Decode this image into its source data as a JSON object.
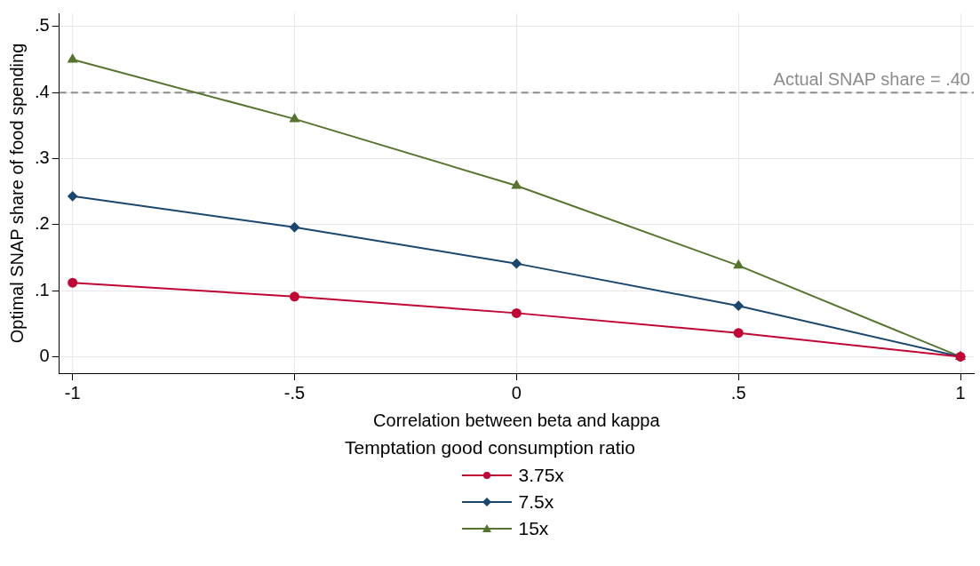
{
  "chart_data": {
    "type": "line",
    "xlabel": "Correlation between beta and kappa",
    "ylabel": "Optimal SNAP share of food spending",
    "legend_title": "Temptation good consumption ratio",
    "legend": "bottom",
    "grid": true,
    "x": [
      -1,
      -0.5,
      0,
      0.5,
      1
    ],
    "series": [
      {
        "name": "3.75x",
        "color": "#c10534",
        "marker": "circle",
        "values": [
          0.112,
          0.091,
          0.066,
          0.036,
          0
        ]
      },
      {
        "name": "7.5x",
        "color": "#1a476f",
        "marker": "diamond",
        "values": [
          0.243,
          0.196,
          0.141,
          0.077,
          0
        ]
      },
      {
        "name": "15x",
        "color": "#55752f",
        "marker": "triangle",
        "values": [
          0.45,
          0.36,
          0.259,
          0.138,
          0
        ]
      }
    ],
    "xlim": [
      -1.03,
      1.03
    ],
    "xticks": [
      -1,
      {
        "value": -0.5,
        "label": "-.5"
      },
      0,
      {
        "value": 0.5,
        "label": ".5"
      },
      1
    ],
    "ylim": [
      -0.025,
      0.52
    ],
    "yticks": [
      0,
      {
        "value": 0.1,
        "label": ".1"
      },
      {
        "value": 0.2,
        "label": ".2"
      },
      {
        "value": 0.3,
        "label": ".3"
      },
      {
        "value": 0.4,
        "label": ".4"
      },
      {
        "value": 0.5,
        "label": ".5"
      }
    ],
    "ref_lines": [
      {
        "axis": "y",
        "value": 0.4,
        "label": "Actual SNAP share = .40",
        "color": "#8c8c8c",
        "line_style": "dashed"
      }
    ]
  }
}
